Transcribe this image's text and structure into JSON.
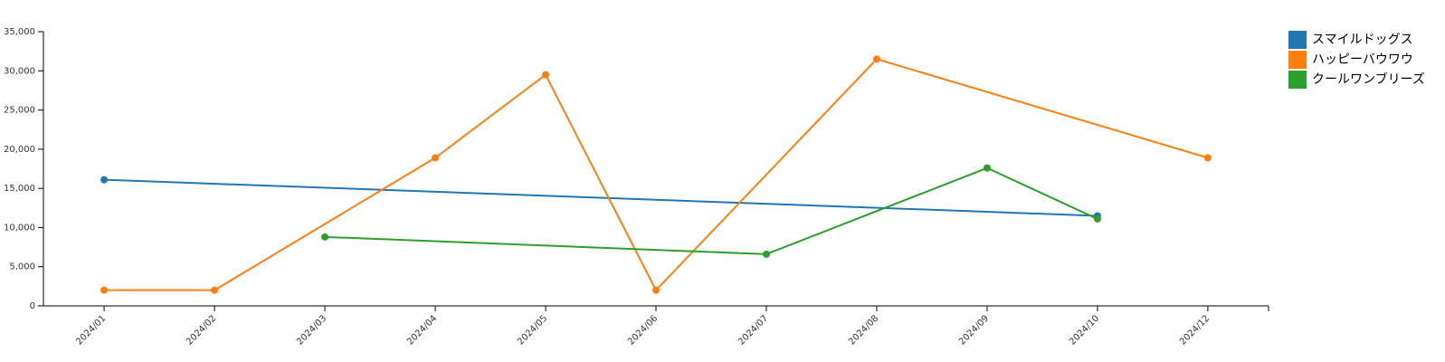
{
  "chart_data": {
    "type": "line",
    "categories": [
      "2024/01",
      "2024/02",
      "2024/03",
      "2024/04",
      "2024/05",
      "2024/06",
      "2024/07",
      "2024/08",
      "2024/09",
      "2024/10",
      "2024/12"
    ],
    "series": [
      {
        "name": "スマイルドッグス",
        "color": "#1f77b4",
        "x": [
          "2024/01",
          "2024/10"
        ],
        "values": [
          16100,
          11500
        ]
      },
      {
        "name": "ハッピーバウワウ",
        "color": "#ff7f0e",
        "x": [
          "2024/01",
          "2024/02",
          "2024/04",
          "2024/05",
          "2024/06",
          "2024/08",
          "2024/12"
        ],
        "values": [
          2000,
          2000,
          18900,
          29500,
          2000,
          31500,
          18900
        ]
      },
      {
        "name": "クールワンブリーズ",
        "color": "#2ca02c",
        "x": [
          "2024/03",
          "2024/07",
          "2024/09",
          "2024/10"
        ],
        "values": [
          8800,
          6600,
          17600,
          11100
        ]
      }
    ],
    "ylim": [
      0,
      35000
    ],
    "yticks": [
      0,
      {
        "value": 5000,
        "label": "5,000"
      },
      {
        "value": 10000,
        "label": "10,000"
      },
      {
        "value": 15000,
        "label": "15,000"
      },
      {
        "value": 20000,
        "label": "20,000"
      },
      {
        "value": 25000,
        "label": "25,000"
      },
      {
        "value": 30000,
        "label": "30,000"
      },
      {
        "value": 35000,
        "label": "35,000"
      }
    ],
    "legend": "top-right"
  }
}
